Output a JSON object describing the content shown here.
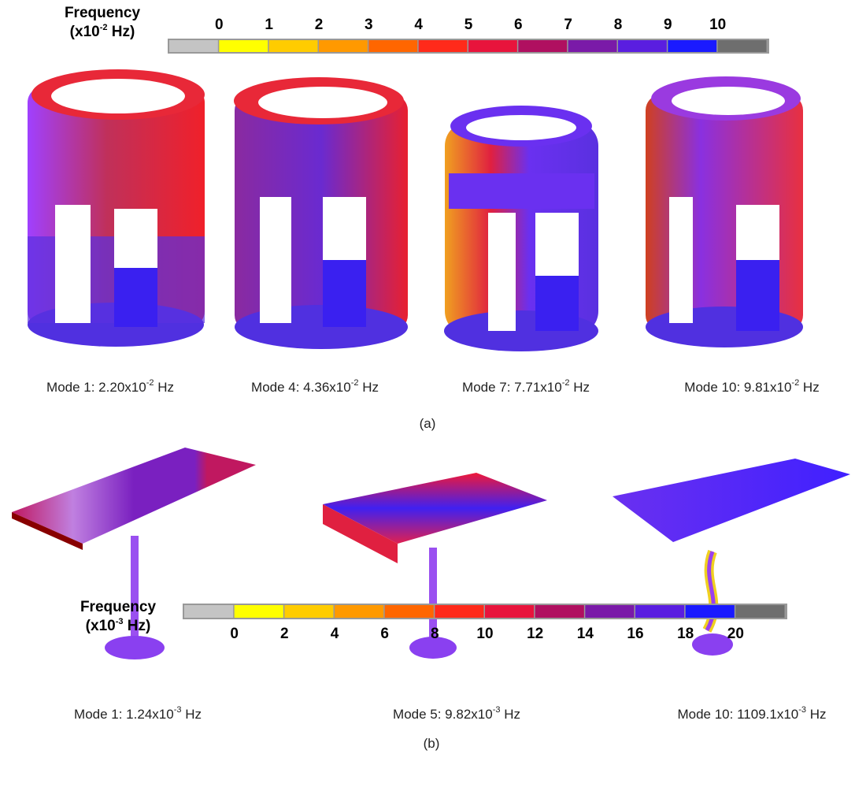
{
  "top_colorbar": {
    "title": "Frequency",
    "unit_prefix": "(x10",
    "unit_exponent": "-2",
    "unit_suffix": " Hz)",
    "ticks": [
      0,
      1,
      2,
      3,
      4,
      5,
      6,
      7,
      8,
      9,
      10
    ],
    "colors": [
      "#c4c4c4",
      "#ffff00",
      "#ffcc00",
      "#ff9900",
      "#ff6600",
      "#ff2a1a",
      "#e8143c",
      "#b01060",
      "#7a1aa8",
      "#5a1ee0",
      "#1a1aff",
      "#6e6e6e"
    ]
  },
  "panel_a": {
    "label": "(a)",
    "modes": [
      {
        "caption": "Mode 1: 2.20x10",
        "exponent": "-2",
        "unit": " Hz"
      },
      {
        "caption": "Mode 4: 4.36x10",
        "exponent": "-2",
        "unit": " Hz"
      },
      {
        "caption": "Mode 7: 7.71x10",
        "exponent": "-2",
        "unit": " Hz"
      },
      {
        "caption": "Mode 10: 9.81x10",
        "exponent": "-2",
        "unit": " Hz"
      }
    ]
  },
  "panel_b": {
    "label": "(b)",
    "modes": [
      {
        "caption": "Mode 1: 1.24x10",
        "exponent": "-3",
        "unit": " Hz"
      },
      {
        "caption": "Mode 5: 9.82x10",
        "exponent": "-3",
        "unit": " Hz"
      },
      {
        "caption": "Mode 10: 1109.1x10",
        "exponent": "-3",
        "unit": " Hz"
      }
    ]
  },
  "bottom_colorbar": {
    "title": "Frequency",
    "unit_prefix": "(x10",
    "unit_exponent": "-3",
    "unit_suffix": " Hz)",
    "ticks": [
      0,
      2,
      4,
      6,
      8,
      10,
      12,
      14,
      16,
      18,
      20
    ],
    "colors": [
      "#c4c4c4",
      "#ffff00",
      "#ffcc00",
      "#ff9900",
      "#ff6600",
      "#ff2a1a",
      "#e8143c",
      "#b01060",
      "#7a1aa8",
      "#5a1ee0",
      "#1a1aff",
      "#6e6e6e"
    ]
  }
}
